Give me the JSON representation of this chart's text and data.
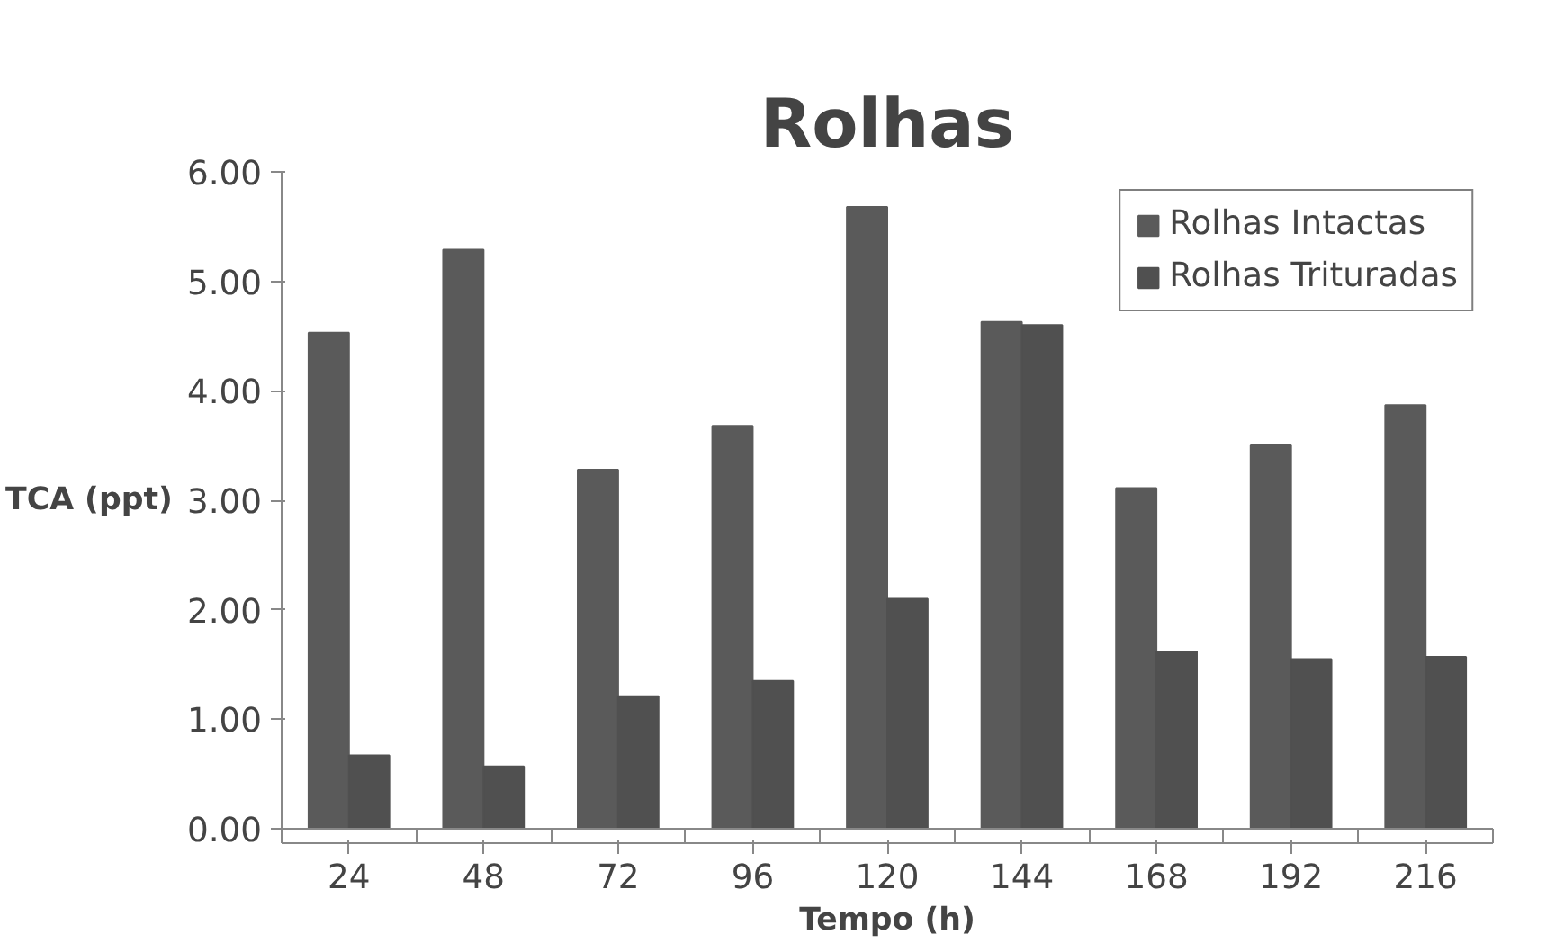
{
  "chart_data": {
    "type": "bar",
    "title": "Rolhas",
    "xlabel": "Tempo (h)",
    "ylabel": "TCA (ppt)",
    "categories": [
      "24",
      "48",
      "72",
      "96",
      "120",
      "144",
      "168",
      "192",
      "216"
    ],
    "series": [
      {
        "name": "Rolhas Intactas",
        "color": "#5a5a5a",
        "values": [
          4.53,
          5.29,
          3.28,
          3.68,
          5.68,
          4.63,
          3.11,
          3.51,
          3.87
        ]
      },
      {
        "name": "Rolhas Trituradas",
        "color": "#505050",
        "values": [
          0.67,
          0.57,
          1.21,
          1.35,
          2.1,
          4.6,
          1.62,
          1.55,
          1.57
        ]
      }
    ],
    "ylim": [
      0,
      6
    ],
    "yticks": [
      {
        "value": 0,
        "label": "0.00"
      },
      {
        "value": 1,
        "label": "1.00"
      },
      {
        "value": 2,
        "label": "2.00"
      },
      {
        "value": 3,
        "label": "3.00"
      },
      {
        "value": 4,
        "label": "4.00"
      },
      {
        "value": 5,
        "label": "5.00"
      },
      {
        "value": 6,
        "label": "6.00"
      }
    ],
    "legend": "top right"
  }
}
